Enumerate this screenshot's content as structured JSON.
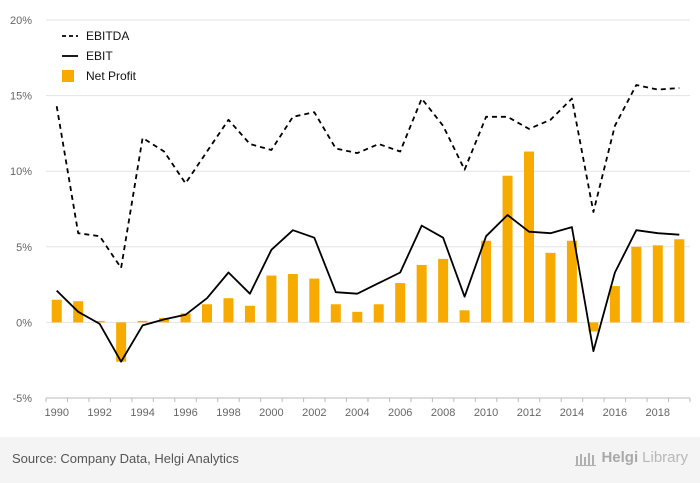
{
  "chart_data": {
    "type": "bar+line",
    "x": [
      1990,
      1991,
      1992,
      1993,
      1994,
      1995,
      1996,
      1997,
      1998,
      1999,
      2000,
      2001,
      2002,
      2003,
      2004,
      2005,
      2006,
      2007,
      2008,
      2009,
      2010,
      2011,
      2012,
      2013,
      2014,
      2015,
      2016,
      2017,
      2018,
      2019
    ],
    "x_ticks": [
      "1990",
      "1992",
      "1994",
      "1996",
      "1998",
      "2000",
      "2002",
      "2004",
      "2006",
      "2008",
      "2010",
      "2012",
      "2014",
      "2016",
      "2018"
    ],
    "y_ticks": [
      "-5%",
      "0%",
      "5%",
      "10%",
      "15%",
      "20%"
    ],
    "ylim": [
      -5,
      20
    ],
    "ylabel": "",
    "xlabel": "",
    "legend_position": "top-left",
    "grid": true,
    "series": [
      {
        "name": "EBITDA",
        "kind": "line",
        "style": "dashed",
        "color": "#000000",
        "values": [
          14.3,
          5.9,
          5.7,
          3.6,
          12.2,
          11.3,
          9.2,
          11.3,
          13.4,
          11.8,
          11.4,
          13.6,
          13.9,
          11.5,
          11.2,
          11.8,
          11.3,
          14.8,
          13.0,
          10.1,
          13.6,
          13.6,
          12.8,
          13.4,
          14.8,
          7.3,
          13.0,
          15.7,
          15.4,
          15.5
        ]
      },
      {
        "name": "EBIT",
        "kind": "line",
        "style": "solid",
        "color": "#000000",
        "values": [
          2.1,
          0.7,
          -0.1,
          -2.6,
          -0.2,
          0.2,
          0.5,
          1.6,
          3.3,
          1.9,
          4.8,
          6.1,
          5.6,
          2.0,
          1.9,
          2.6,
          3.3,
          6.4,
          5.6,
          1.7,
          5.7,
          7.1,
          6.0,
          5.9,
          6.3,
          -1.9,
          3.3,
          6.1,
          5.9,
          5.8
        ]
      },
      {
        "name": "Net Profit",
        "kind": "bar",
        "color": "#f7ab00",
        "values": [
          1.5,
          1.4,
          0.1,
          -2.6,
          0.1,
          0.3,
          0.6,
          1.2,
          1.6,
          1.1,
          3.1,
          3.2,
          2.9,
          1.2,
          0.7,
          1.2,
          2.6,
          3.8,
          4.2,
          0.8,
          5.4,
          9.7,
          11.3,
          4.6,
          5.4,
          -0.6,
          2.4,
          5.0,
          5.1,
          5.5
        ]
      }
    ]
  },
  "footer": {
    "source": "Source: Company Data, Helgi Analytics",
    "brand_name": "Helgi",
    "brand_suffix": "Library"
  }
}
